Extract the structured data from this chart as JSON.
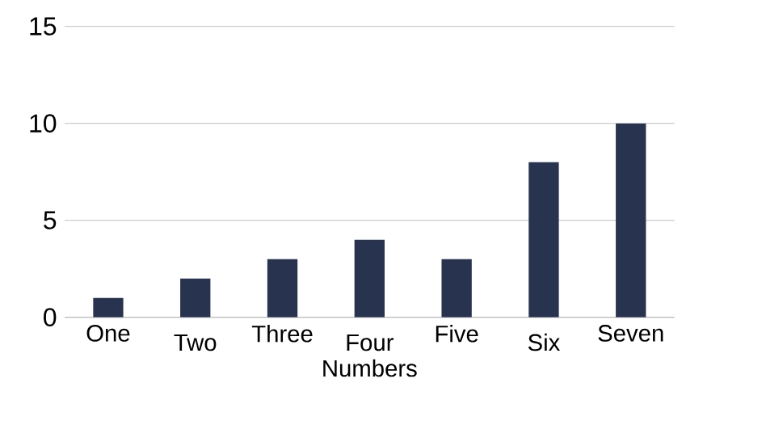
{
  "chart_data": {
    "type": "bar",
    "categories": [
      "One",
      "Two",
      "Three",
      "Four Numbers",
      "Five",
      "Six",
      "Seven"
    ],
    "values": [
      1,
      2,
      3,
      4,
      3,
      8,
      10
    ],
    "color": "#283350",
    "ylim": [
      0,
      15
    ],
    "yticks": [
      0,
      5,
      10,
      15
    ],
    "grid": "y"
  }
}
